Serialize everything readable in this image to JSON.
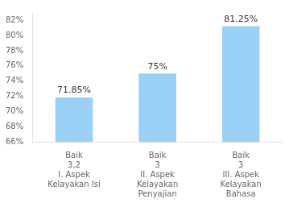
{
  "chart_data": {
    "type": "bar",
    "categories": [
      "Baik\n3,2\nI. Aspek\nKelayakan Isi",
      "Baik\n3\nII. Aspek\nKelayakan\nPenyajian",
      "Baik\n3\nIII. Aspek\nKelayakan\nBahasa"
    ],
    "values": [
      71.85,
      75.0,
      81.25
    ],
    "value_labels": [
      "71.85%",
      "75%",
      "81.25%"
    ],
    "data_labels": true,
    "ylim": [
      66,
      83
    ],
    "yticks": [
      {
        "value": 66,
        "label": "66%"
      },
      {
        "value": 68,
        "label": "68%"
      },
      {
        "value": 70,
        "label": "70%"
      },
      {
        "value": 72,
        "label": "72%"
      },
      {
        "value": 74,
        "label": "74%"
      },
      {
        "value": 76,
        "label": "76%"
      },
      {
        "value": 78,
        "label": "78%"
      },
      {
        "value": 80,
        "label": "80%"
      },
      {
        "value": 82,
        "label": "82%"
      }
    ],
    "grid": false
  }
}
